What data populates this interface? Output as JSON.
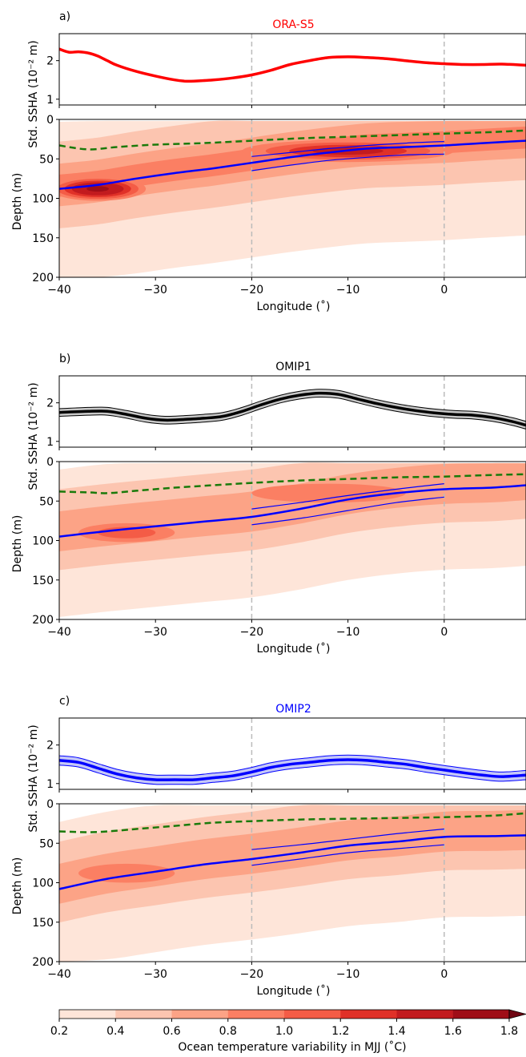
{
  "chart_data": {
    "type": "line",
    "x_range": [
      -40,
      8.5
    ],
    "ssha_range": [
      0.85,
      2.7
    ],
    "depth_range": [
      200,
      0
    ],
    "vlines": [
      -20,
      0
    ],
    "x_ticks": [
      -40,
      -30,
      -20,
      -10,
      0
    ],
    "x_tick_labels": [
      "−40",
      "−30",
      "−20",
      "−10",
      "0"
    ],
    "ssha_ticks": [
      1,
      2
    ],
    "depth_ticks": [
      0,
      50,
      100,
      150,
      200
    ],
    "xlabel": "Longitude (˚)",
    "ylabel_ssha": "Std. SSHA (10⁻² m)",
    "ylabel_depth": "Depth (m)",
    "panels": [
      {
        "label": "a)",
        "title": "ORA-S5",
        "title_color": "#ff0000",
        "ssha_color": "#ff0000",
        "ssha_x": [
          -40,
          -39,
          -38,
          -37,
          -36,
          -35,
          -34,
          -32,
          -30,
          -28,
          -27,
          -26,
          -24,
          -22,
          -20,
          -18,
          -16,
          -14,
          -12,
          -10,
          -8,
          -6,
          -4,
          -2,
          0,
          2,
          4,
          6,
          8.5
        ],
        "ssha": [
          2.3,
          2.22,
          2.23,
          2.2,
          2.12,
          2.0,
          1.88,
          1.72,
          1.6,
          1.5,
          1.47,
          1.47,
          1.5,
          1.55,
          1.63,
          1.75,
          1.9,
          2.0,
          2.08,
          2.1,
          2.08,
          2.05,
          2.0,
          1.95,
          1.92,
          1.9,
          1.9,
          1.91,
          1.88
        ],
        "ssha_band": null,
        "thermocline_x": [
          -40,
          -36,
          -32,
          -28,
          -24,
          -20,
          -16,
          -12,
          -8,
          -4,
          0,
          4,
          8.5
        ],
        "thermocline_depth": [
          88,
          83,
          75,
          68,
          62,
          55,
          48,
          42,
          37,
          35,
          33,
          30,
          27
        ],
        "bounds_x": [
          -20,
          -16,
          -12,
          -8,
          -4,
          0
        ],
        "bounds_upper": [
          47,
          42,
          37,
          33,
          30,
          28
        ],
        "bounds_lower": [
          65,
          58,
          52,
          48,
          45,
          44
        ],
        "mld_x": [
          -40,
          -37,
          -34,
          -30,
          -25,
          -20,
          -15,
          -10,
          -5,
          0,
          5,
          8.5
        ],
        "mld_depth": [
          33,
          38,
          35,
          32,
          30,
          27,
          24,
          22,
          20,
          18,
          16,
          14
        ],
        "hotspots": [
          {
            "x": -36,
            "y": 88,
            "level": 1.9,
            "rx": 5,
            "ry": 15
          },
          {
            "x": -10,
            "y": 40,
            "level": 1.45,
            "rx": 11,
            "ry": 14
          }
        ]
      },
      {
        "label": "b)",
        "title": "OMIP1",
        "title_color": "#000000",
        "ssha_color": "#000000",
        "ssha_x": [
          -40,
          -37,
          -35,
          -33,
          -31,
          -29,
          -27,
          -25,
          -23,
          -21,
          -19,
          -17,
          -15,
          -13,
          -11,
          -9,
          -7,
          -5,
          -3,
          -1,
          1,
          3,
          5,
          7,
          8.5
        ],
        "ssha": [
          1.75,
          1.78,
          1.78,
          1.7,
          1.6,
          1.55,
          1.57,
          1.6,
          1.65,
          1.78,
          1.95,
          2.1,
          2.2,
          2.25,
          2.22,
          2.1,
          1.98,
          1.88,
          1.8,
          1.74,
          1.7,
          1.68,
          1.62,
          1.52,
          1.42
        ],
        "ssha_band": 0.1,
        "thermocline_x": [
          -40,
          -35,
          -30,
          -25,
          -20,
          -15,
          -10,
          -5,
          0,
          5,
          8.5
        ],
        "thermocline_depth": [
          95,
          88,
          82,
          76,
          70,
          60,
          48,
          40,
          35,
          33,
          30
        ],
        "bounds_x": [
          -20,
          -15,
          -10,
          -5,
          0
        ],
        "bounds_upper": [
          60,
          52,
          43,
          35,
          28
        ],
        "bounds_lower": [
          80,
          72,
          62,
          52,
          45
        ],
        "mld_x": [
          -40,
          -37,
          -35,
          -32,
          -28,
          -24,
          -20,
          -15,
          -10,
          -5,
          0,
          5,
          8.5
        ],
        "mld_depth": [
          38,
          39,
          40,
          37,
          33,
          30,
          27,
          24,
          22,
          20,
          19,
          17,
          16
        ],
        "hotspots": [
          {
            "x": -33,
            "y": 90,
            "level": 1.1,
            "rx": 5,
            "ry": 12
          },
          {
            "x": -12,
            "y": 40,
            "level": 0.95,
            "rx": 8,
            "ry": 12
          }
        ]
      },
      {
        "label": "c)",
        "title": "OMIP2",
        "title_color": "#0000ff",
        "ssha_color": "#0000ff",
        "ssha_x": [
          -40,
          -38,
          -36,
          -34,
          -32,
          -30,
          -28,
          -26,
          -24,
          -22,
          -20,
          -18,
          -16,
          -14,
          -12,
          -10,
          -8,
          -6,
          -4,
          -2,
          0,
          2,
          4,
          6,
          8.5
        ],
        "ssha": [
          1.6,
          1.55,
          1.4,
          1.25,
          1.15,
          1.1,
          1.1,
          1.1,
          1.15,
          1.2,
          1.3,
          1.42,
          1.5,
          1.55,
          1.6,
          1.62,
          1.6,
          1.55,
          1.5,
          1.42,
          1.35,
          1.28,
          1.22,
          1.18,
          1.22
        ],
        "ssha_band": 0.12,
        "thermocline_x": [
          -40,
          -35,
          -30,
          -25,
          -20,
          -15,
          -10,
          -5,
          0,
          5,
          8.5
        ],
        "thermocline_depth": [
          108,
          95,
          86,
          77,
          70,
          62,
          53,
          48,
          42,
          41,
          40
        ],
        "bounds_x": [
          -20,
          -15,
          -10,
          -5,
          0
        ],
        "bounds_upper": [
          58,
          52,
          45,
          38,
          32
        ],
        "bounds_lower": [
          78,
          70,
          62,
          57,
          52
        ],
        "mld_x": [
          -40,
          -37,
          -35,
          -32,
          -28,
          -24,
          -20,
          -15,
          -10,
          -5,
          0,
          5,
          8.5
        ],
        "mld_depth": [
          35,
          36,
          35,
          32,
          28,
          24,
          22,
          20,
          19,
          18,
          17,
          15,
          12
        ],
        "hotspots": [
          {
            "x": -33,
            "y": 88,
            "level": 0.95,
            "rx": 5,
            "ry": 12
          },
          {
            "x": -8,
            "y": 60,
            "level": 0.75,
            "rx": 10,
            "ry": 14
          }
        ]
      }
    ],
    "colorbar": {
      "label": "Ocean temperature variability in MJJ (˚C)",
      "levels": [
        0.2,
        0.4,
        0.6,
        0.8,
        1.0,
        1.2,
        1.4,
        1.6,
        1.8
      ],
      "tick_labels": [
        "0.2",
        "0.4",
        "0.6",
        "0.8",
        "1.0",
        "1.2",
        "1.4",
        "1.6",
        "1.8"
      ],
      "colors": [
        "#fee5d9",
        "#fcc5b0",
        "#fca386",
        "#fb7f63",
        "#f45c46",
        "#e03128",
        "#c21b1f",
        "#9f0e17",
        "#6f0512"
      ]
    }
  }
}
